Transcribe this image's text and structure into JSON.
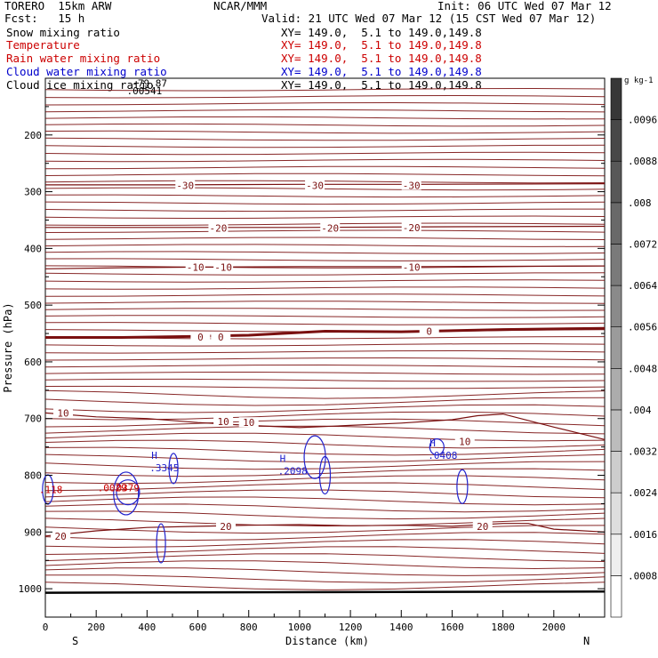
{
  "header": {
    "model": "TORERO  15km ARW",
    "org": "NCAR/MMM",
    "init": "Init: 06 UTC Wed 07 Mar 12",
    "fcst": "Fcst:   15 h",
    "valid": "Valid: 21 UTC Wed 07 Mar 12 (15 CST Wed 07 Mar 12)",
    "fields": [
      {
        "label": "Snow mixing ratio",
        "xy": "XY= 149.0,  5.1 to 149.0,149.8",
        "color": "#000000"
      },
      {
        "label": "Temperature",
        "xy": "XY= 149.0,  5.1 to 149.0,149.8",
        "color": "#cc0000"
      },
      {
        "label": "Rain water mixing ratio",
        "xy": "XY= 149.0,  5.1 to 149.0,149.8",
        "color": "#cc0000"
      },
      {
        "label": "Cloud water mixing ratio",
        "xy": "XY= 149.0,  5.1 to 149.0,149.8",
        "color": "#0000cc"
      },
      {
        "label": "Cloud ice mixing ratio",
        "xy": "XY= 149.0,  5.1 to 149.0,149.8",
        "color": "#000000"
      }
    ]
  },
  "colors": {
    "temperature": "#7a1010",
    "freezing": "#7a1010",
    "cloud_water": "#2020cc",
    "rain_water": "#cc0000",
    "ground": "#000000"
  },
  "chart_data": {
    "type": "contour",
    "xlabel": "Distance (km)",
    "ylabel": "Pressure (hPa)",
    "xlim": [
      0,
      2200
    ],
    "ylim": [
      1050,
      100
    ],
    "x_ticks": [
      0,
      200,
      400,
      600,
      800,
      1000,
      1200,
      1400,
      1600,
      1800,
      2000
    ],
    "y_ticks": [
      200,
      300,
      400,
      500,
      600,
      700,
      800,
      900,
      1000
    ],
    "y_tick_labels": [
      "200",
      "300",
      "400",
      "500",
      "600",
      "700",
      "800",
      "900",
      "1000"
    ],
    "x_tick_labels": [
      "0",
      "200",
      "400",
      "600",
      "800",
      "1000",
      "1200",
      "1400",
      "1600",
      "1800",
      "2000"
    ],
    "end_labels": {
      "left": "S",
      "right": "N"
    },
    "colorbar": {
      "unit": "g kg-1",
      "levels": [
        ".0008",
        ".0016",
        ".0024",
        ".0032",
        ".004",
        ".0048",
        ".0056",
        ".0064",
        ".0072",
        ".008",
        ".0088",
        ".0096"
      ]
    },
    "temperature_contours": [
      {
        "label": "-30",
        "x": [
          0,
          500,
          1000,
          1500,
          2200
        ],
        "p": [
          288,
          288,
          287,
          287,
          286
        ]
      },
      {
        "label": "-20",
        "x": [
          0,
          500,
          1000,
          1500,
          2200
        ],
        "p": [
          363,
          363,
          363,
          362,
          361
        ]
      },
      {
        "label": "-10",
        "x": [
          0,
          300,
          600,
          1000,
          1500,
          2200
        ],
        "p": [
          436,
          434,
          433,
          432,
          432,
          431
        ]
      },
      {
        "label": "0",
        "x": [
          0,
          300,
          600,
          800,
          1100,
          1400,
          1800,
          2200
        ],
        "p": [
          557,
          557,
          555,
          553,
          546,
          547,
          543,
          541
        ]
      },
      {
        "label": "10",
        "x": [
          0,
          200,
          400,
          600,
          800,
          1000,
          1200,
          1400,
          1600,
          1700,
          1800,
          2000,
          2200
        ],
        "p": [
          690,
          697,
          700,
          707,
          712,
          716,
          712,
          708,
          702,
          695,
          692,
          715,
          737
        ]
      },
      {
        "label": "20",
        "x": [
          0,
          200,
          400,
          600,
          800,
          1000,
          1200,
          1400,
          1600,
          1800,
          1900,
          2000,
          2200
        ],
        "p": [
          907,
          898,
          892,
          890,
          888,
          887,
          889,
          888,
          890,
          885,
          885,
          895,
          900
        ]
      }
    ],
    "temperature_labels": [
      {
        "text": "-30",
        "x": 550,
        "p": 289
      },
      {
        "text": "-30",
        "x": 1060,
        "p": 289
      },
      {
        "text": "-30",
        "x": 1440,
        "p": 289
      },
      {
        "text": "-20",
        "x": 680,
        "p": 364
      },
      {
        "text": "-20",
        "x": 1120,
        "p": 364
      },
      {
        "text": "-20",
        "x": 1440,
        "p": 363
      },
      {
        "text": "-10",
        "x": 590,
        "p": 433
      },
      {
        "text": "-10",
        "x": 700,
        "p": 433
      },
      {
        "text": "-10",
        "x": 1440,
        "p": 433
      },
      {
        "text": "0",
        "x": 610,
        "p": 556
      },
      {
        "text": "0",
        "x": 690,
        "p": 556
      },
      {
        "text": "0",
        "x": 1510,
        "p": 546
      },
      {
        "text": "10",
        "x": 70,
        "p": 690
      },
      {
        "text": "10",
        "x": 700,
        "p": 705
      },
      {
        "text": "10",
        "x": 800,
        "p": 707
      },
      {
        "text": "10",
        "x": 1650,
        "p": 740
      },
      {
        "text": "20",
        "x": 60,
        "p": 907
      },
      {
        "text": "20",
        "x": 710,
        "p": 890
      },
      {
        "text": "20",
        "x": 1720,
        "p": 890
      }
    ],
    "cloud_water_maxima": [
      {
        "text": ".3345",
        "x": 445,
        "p": 790
      },
      {
        "text": ".2098",
        "x": 950,
        "p": 795
      },
      {
        "text": ".0408",
        "x": 1540,
        "p": 768
      }
    ],
    "rain_water_maxima": [
      {
        "text": ".0379",
        "x": 290,
        "p": 822
      },
      {
        "text": ".0029",
        "x": 240,
        "p": 822
      },
      {
        "text": ".118",
        "x": 10,
        "p": 825
      }
    ],
    "top_labels": [
      {
        "text": "-79.87",
        "x": 340,
        "p": 115
      },
      {
        "text": ".00541",
        "x": 320,
        "p": 128
      }
    ]
  }
}
